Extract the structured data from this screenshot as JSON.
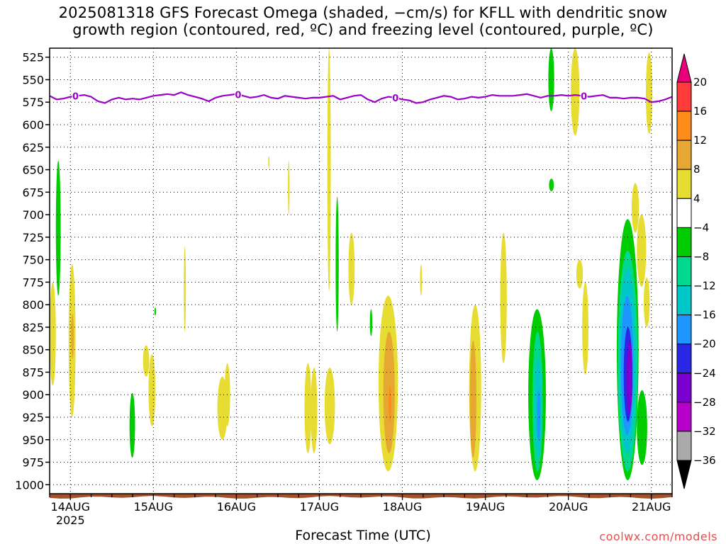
{
  "title_line1": "2025081318 GFS Forecast Omega (shaded, −cm/s) for KFLL with dendritic snow",
  "title_line2": "growth region (contoured, red, ºC) and freezing level (contoured, purple, ºC)",
  "credit": "coolwx.com/models",
  "colors": {
    "freezing_line": "#9a00c8",
    "terrain": "#a0522d"
  },
  "chart_data": {
    "type": "heatmap",
    "title": "2025081318 GFS Forecast Omega (shaded, −cm/s) for KFLL with dendritic snow growth region (contoured, red, ºC) and freezing level (contoured, purple, ºC)",
    "xlabel": "Forecast Time (UTC)",
    "ylabel": "",
    "x_start": "2025-08-13 18Z",
    "x_range_hours": [
      0,
      180
    ],
    "x_ticks": [
      {
        "label": "14AUG",
        "sub": "2025",
        "hour": 6
      },
      {
        "label": "15AUG",
        "sub": "",
        "hour": 30
      },
      {
        "label": "16AUG",
        "sub": "",
        "hour": 54
      },
      {
        "label": "17AUG",
        "sub": "",
        "hour": 78
      },
      {
        "label": "18AUG",
        "sub": "",
        "hour": 102
      },
      {
        "label": "19AUG",
        "sub": "",
        "hour": 126
      },
      {
        "label": "20AUG",
        "sub": "",
        "hour": 150
      },
      {
        "label": "21AUG",
        "sub": "",
        "hour": 174
      }
    ],
    "y_range_hpa": [
      1010,
      515
    ],
    "y_ticks": [
      "525",
      "550",
      "575",
      "600",
      "625",
      "650",
      "675",
      "700",
      "725",
      "750",
      "775",
      "800",
      "825",
      "850",
      "875",
      "900",
      "925",
      "950",
      "975",
      "1000"
    ],
    "grid": "dotted",
    "colorbar": {
      "placement": "right",
      "labels": [
        "20",
        "16",
        "12",
        "8",
        "4",
        "−4",
        "−8",
        "−12",
        "−16",
        "−20",
        "−24",
        "−28",
        "−32",
        "−36"
      ],
      "bins": [
        {
          "color": "#e8007a",
          "label": ">20"
        },
        {
          "color": "#ff3b3b",
          "label": "16 to 20"
        },
        {
          "color": "#ff8c1a",
          "label": "12 to 16"
        },
        {
          "color": "#e6a832",
          "label": "8 to 12"
        },
        {
          "color": "#e6dc32",
          "label": "4 to 8"
        },
        {
          "color": "#ffffff",
          "label": "−4 to 4"
        },
        {
          "color": "#00cc00",
          "label": "−8 to −4"
        },
        {
          "color": "#00d890",
          "label": "−12 to −8"
        },
        {
          "color": "#00c8c8",
          "label": "−16 to −12"
        },
        {
          "color": "#1e96ff",
          "label": "−20 to −16"
        },
        {
          "color": "#2828e6",
          "label": "−24 to −20"
        },
        {
          "color": "#7a00d0",
          "label": "−28 to −24"
        },
        {
          "color": "#b400c8",
          "label": "−32 to −28"
        },
        {
          "color": "#aaaaaa",
          "label": "−36 to −32"
        },
        {
          "color": "#000000",
          "label": "<−36"
        }
      ]
    },
    "freezing_level": {
      "label": "0",
      "label_hours": [
        7.5,
        54.5,
        100,
        154.5
      ],
      "hours": [
        0,
        2,
        4,
        6,
        8,
        10,
        12,
        14,
        16,
        18,
        20,
        22,
        24,
        26,
        28,
        30,
        32,
        34,
        36,
        38,
        40,
        42,
        44,
        46,
        48,
        50,
        52,
        54,
        56,
        58,
        60,
        62,
        64,
        66,
        68,
        70,
        72,
        74,
        76,
        78,
        80,
        82,
        84,
        86,
        88,
        90,
        92,
        94,
        96,
        98,
        100,
        102,
        104,
        106,
        108,
        110,
        112,
        114,
        116,
        118,
        120,
        122,
        124,
        126,
        128,
        130,
        132,
        134,
        136,
        138,
        140,
        142,
        144,
        146,
        148,
        150,
        152,
        154,
        156,
        158,
        160,
        162,
        164,
        166,
        168,
        170,
        172,
        174,
        176,
        178,
        180
      ],
      "pressure_hpa": [
        568,
        572,
        571,
        569,
        568,
        567,
        569,
        574,
        576,
        572,
        570,
        572,
        571,
        572,
        570,
        568,
        567,
        566,
        567,
        564,
        567,
        569,
        571,
        574,
        570,
        568,
        567,
        566,
        568,
        570,
        569,
        567,
        570,
        571,
        568,
        569,
        570,
        571,
        570,
        570,
        569,
        568,
        572,
        570,
        568,
        567,
        572,
        575,
        571,
        569,
        570,
        572,
        573,
        576,
        575,
        572,
        570,
        568,
        569,
        572,
        571,
        569,
        570,
        569,
        567,
        568,
        568,
        568,
        567,
        566,
        568,
        570,
        568,
        568,
        567,
        568,
        567,
        568,
        569,
        568,
        567,
        570,
        570,
        571,
        570,
        570,
        571,
        575,
        574,
        572,
        569
      ]
    },
    "omega_regions": [
      {
        "bin": "4 to 8",
        "hours": [
          5.5,
          7.5
        ],
        "pressure_hpa": [
          755,
          925
        ]
      },
      {
        "bin": "8 to 12",
        "hours": [
          6.2,
          7.0
        ],
        "pressure_hpa": [
          810,
          860
        ]
      },
      {
        "bin": "4 to 8",
        "hours": [
          0,
          1.8
        ],
        "pressure_hpa": [
          775,
          890
        ]
      },
      {
        "bin": "−8 to −4",
        "hours": [
          1.8,
          3.2
        ],
        "pressure_hpa": [
          640,
          790
        ]
      },
      {
        "bin": "4 to 8",
        "hours": [
          27,
          28.8
        ],
        "pressure_hpa": [
          845,
          880
        ]
      },
      {
        "bin": "4 to 8",
        "hours": [
          28.6,
          30.6
        ],
        "pressure_hpa": [
          855,
          935
        ]
      },
      {
        "bin": "−8 to −4",
        "hours": [
          23.1,
          24.7
        ],
        "pressure_hpa": [
          898,
          970
        ]
      },
      {
        "bin": "−8 to −4",
        "hours": [
          30.3,
          30.8
        ],
        "pressure_hpa": [
          803,
          812
        ]
      },
      {
        "bin": "4 to 8",
        "hours": [
          38.8,
          39.4
        ],
        "pressure_hpa": [
          735,
          830
        ]
      },
      {
        "bin": "4 to 8",
        "hours": [
          48.5,
          51.4
        ],
        "pressure_hpa": [
          880,
          950
        ]
      },
      {
        "bin": "4 to 8",
        "hours": [
          50.6,
          52.2
        ],
        "pressure_hpa": [
          865,
          935
        ]
      },
      {
        "bin": "4 to 8",
        "hours": [
          63.2,
          63.6
        ],
        "pressure_hpa": [
          635,
          648
        ]
      },
      {
        "bin": "4 to 8",
        "hours": [
          68.9,
          69.4
        ],
        "pressure_hpa": [
          640,
          700
        ]
      },
      {
        "bin": "4 to 8",
        "hours": [
          73.7,
          75.7
        ],
        "pressure_hpa": [
          865,
          965
        ]
      },
      {
        "bin": "4 to 8",
        "hours": [
          75.5,
          77.4
        ],
        "pressure_hpa": [
          870,
          965
        ]
      },
      {
        "bin": "4 to 8",
        "hours": [
          80.3,
          81.3
        ],
        "pressure_hpa": [
          515,
          785
        ]
      },
      {
        "bin": "4 to 8",
        "hours": [
          79.5,
          82.5
        ],
        "pressure_hpa": [
          870,
          955
        ]
      },
      {
        "bin": "−8 to −4",
        "hours": [
          82.7,
          83.6
        ],
        "pressure_hpa": [
          680,
          830
        ]
      },
      {
        "bin": "4 to 8",
        "hours": [
          86.4,
          88.2
        ],
        "pressure_hpa": [
          720,
          800
        ]
      },
      {
        "bin": "−8 to −4",
        "hours": [
          92.6,
          93.3
        ],
        "pressure_hpa": [
          805,
          835
        ]
      },
      {
        "bin": "4 to 8",
        "hours": [
          95.1,
          100.7
        ],
        "pressure_hpa": [
          790,
          985
        ]
      },
      {
        "bin": "8 to 12",
        "hours": [
          96.5,
          99.8
        ],
        "pressure_hpa": [
          830,
          965
        ]
      },
      {
        "bin": "12 to 16",
        "hours": [
          98.0,
          98.8
        ],
        "pressure_hpa": [
          890,
          930
        ]
      },
      {
        "bin": "4 to 8",
        "hours": [
          107.1,
          107.7
        ],
        "pressure_hpa": [
          755,
          790
        ]
      },
      {
        "bin": "4 to 8",
        "hours": [
          121.3,
          124.8
        ],
        "pressure_hpa": [
          800,
          985
        ]
      },
      {
        "bin": "8 to 12",
        "hours": [
          121.5,
          123.4
        ],
        "pressure_hpa": [
          840,
          970
        ]
      },
      {
        "bin": "4 to 8",
        "hours": [
          130.3,
          132.2
        ],
        "pressure_hpa": [
          720,
          865
        ]
      },
      {
        "bin": "−8 to −4",
        "hours": [
          138.4,
          143.5
        ],
        "pressure_hpa": [
          805,
          995
        ]
      },
      {
        "bin": "−12 to −8",
        "hours": [
          139.6,
          142.6
        ],
        "pressure_hpa": [
          830,
          985
        ]
      },
      {
        "bin": "−16 to −12",
        "hours": [
          140.3,
          142.3
        ],
        "pressure_hpa": [
          860,
          970
        ]
      },
      {
        "bin": "−20 to −16",
        "hours": [
          140.9,
          141.9
        ],
        "pressure_hpa": [
          895,
          950
        ]
      },
      {
        "bin": "−8 to −4",
        "hours": [
          144.2,
          145.9
        ],
        "pressure_hpa": [
          515,
          585
        ]
      },
      {
        "bin": "−8 to −4",
        "hours": [
          144.4,
          145.8
        ],
        "pressure_hpa": [
          660,
          674
        ]
      },
      {
        "bin": "4 to 8",
        "hours": [
          150.7,
          153.2
        ],
        "pressure_hpa": [
          515,
          612
        ]
      },
      {
        "bin": "4 to 8",
        "hours": [
          152.3,
          154.2
        ],
        "pressure_hpa": [
          750,
          782
        ]
      },
      {
        "bin": "4 to 8",
        "hours": [
          154.0,
          155.8
        ],
        "pressure_hpa": [
          775,
          878
        ]
      },
      {
        "bin": "−8 to −4",
        "hours": [
          164.0,
          170.3
        ],
        "pressure_hpa": [
          705,
          995
        ]
      },
      {
        "bin": "−12 to −8",
        "hours": [
          164.3,
          170.0
        ],
        "pressure_hpa": [
          740,
          985
        ]
      },
      {
        "bin": "−16 to −12",
        "hours": [
          164.7,
          169.5
        ],
        "pressure_hpa": [
          760,
          965
        ]
      },
      {
        "bin": "−20 to −16",
        "hours": [
          165.2,
          168.8
        ],
        "pressure_hpa": [
          790,
          945
        ]
      },
      {
        "bin": "−24 to −20",
        "hours": [
          166.0,
          168.5
        ],
        "pressure_hpa": [
          825,
          930
        ]
      },
      {
        "bin": "−28 to −24",
        "hours": [
          166.8,
          168.5
        ],
        "pressure_hpa": [
          840,
          922
        ]
      },
      {
        "bin": "−8 to −4",
        "hours": [
          169.8,
          172.8
        ],
        "pressure_hpa": [
          895,
          978
        ]
      },
      {
        "bin": "4 to 8",
        "hours": [
          168.3,
          170.4
        ],
        "pressure_hpa": [
          665,
          720
        ]
      },
      {
        "bin": "4 to 8",
        "hours": [
          169.8,
          172.5
        ],
        "pressure_hpa": [
          700,
          780
        ]
      },
      {
        "bin": "4 to 8",
        "hours": [
          171.8,
          173.5
        ],
        "pressure_hpa": [
          770,
          825
        ]
      },
      {
        "bin": "4 to 8",
        "hours": [
          172.4,
          174.3
        ],
        "pressure_hpa": [
          520,
          610
        ]
      }
    ]
  }
}
